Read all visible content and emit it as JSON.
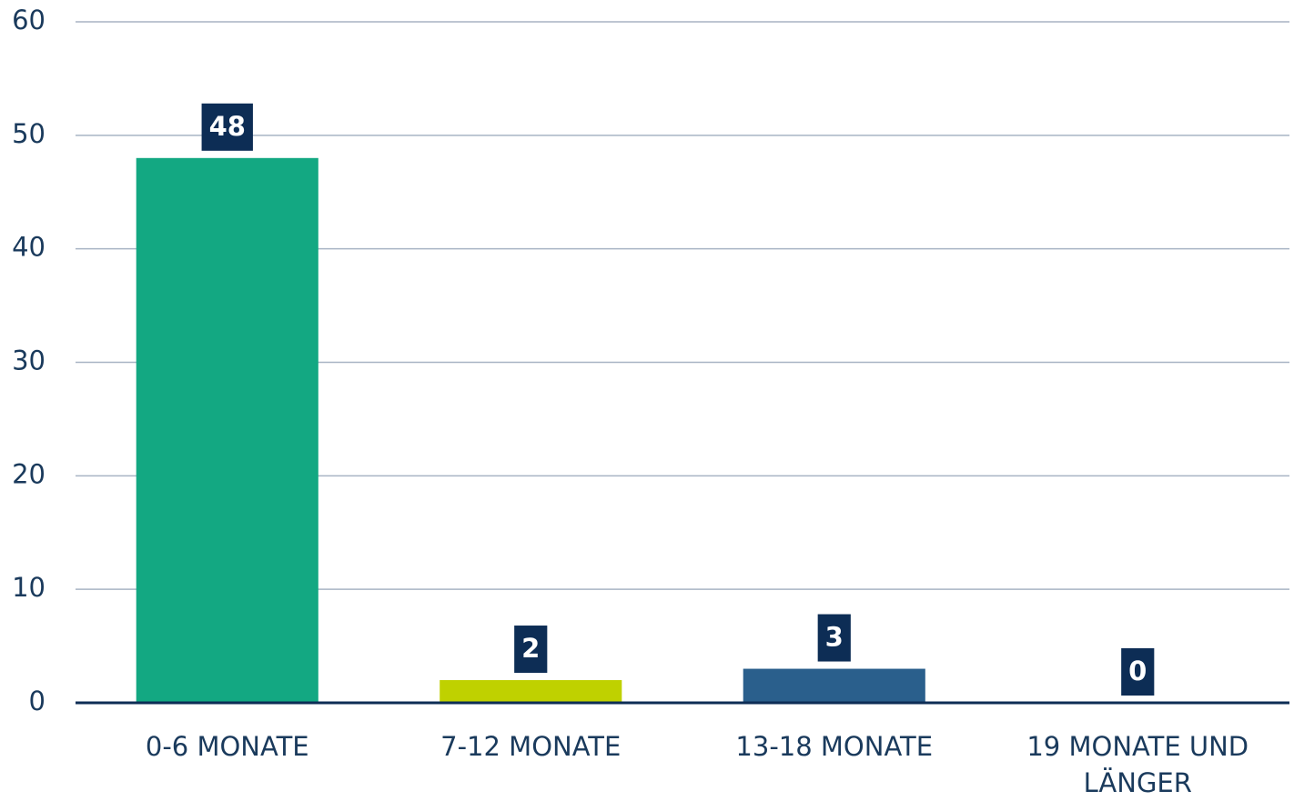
{
  "chart_data": {
    "type": "bar",
    "categories": [
      "0-6 MONATE",
      "7-12 MONATE",
      "13-18 MONATE",
      "19 MONATE UND LÄNGER"
    ],
    "values": [
      48,
      2,
      3,
      0
    ],
    "colors": [
      "#13a882",
      "#bfd100",
      "#2a5f8c",
      "#2a5f8c"
    ],
    "ylim": [
      0,
      60
    ],
    "yticks": [
      0,
      10,
      20,
      30,
      40,
      50,
      60
    ],
    "grid": true
  }
}
